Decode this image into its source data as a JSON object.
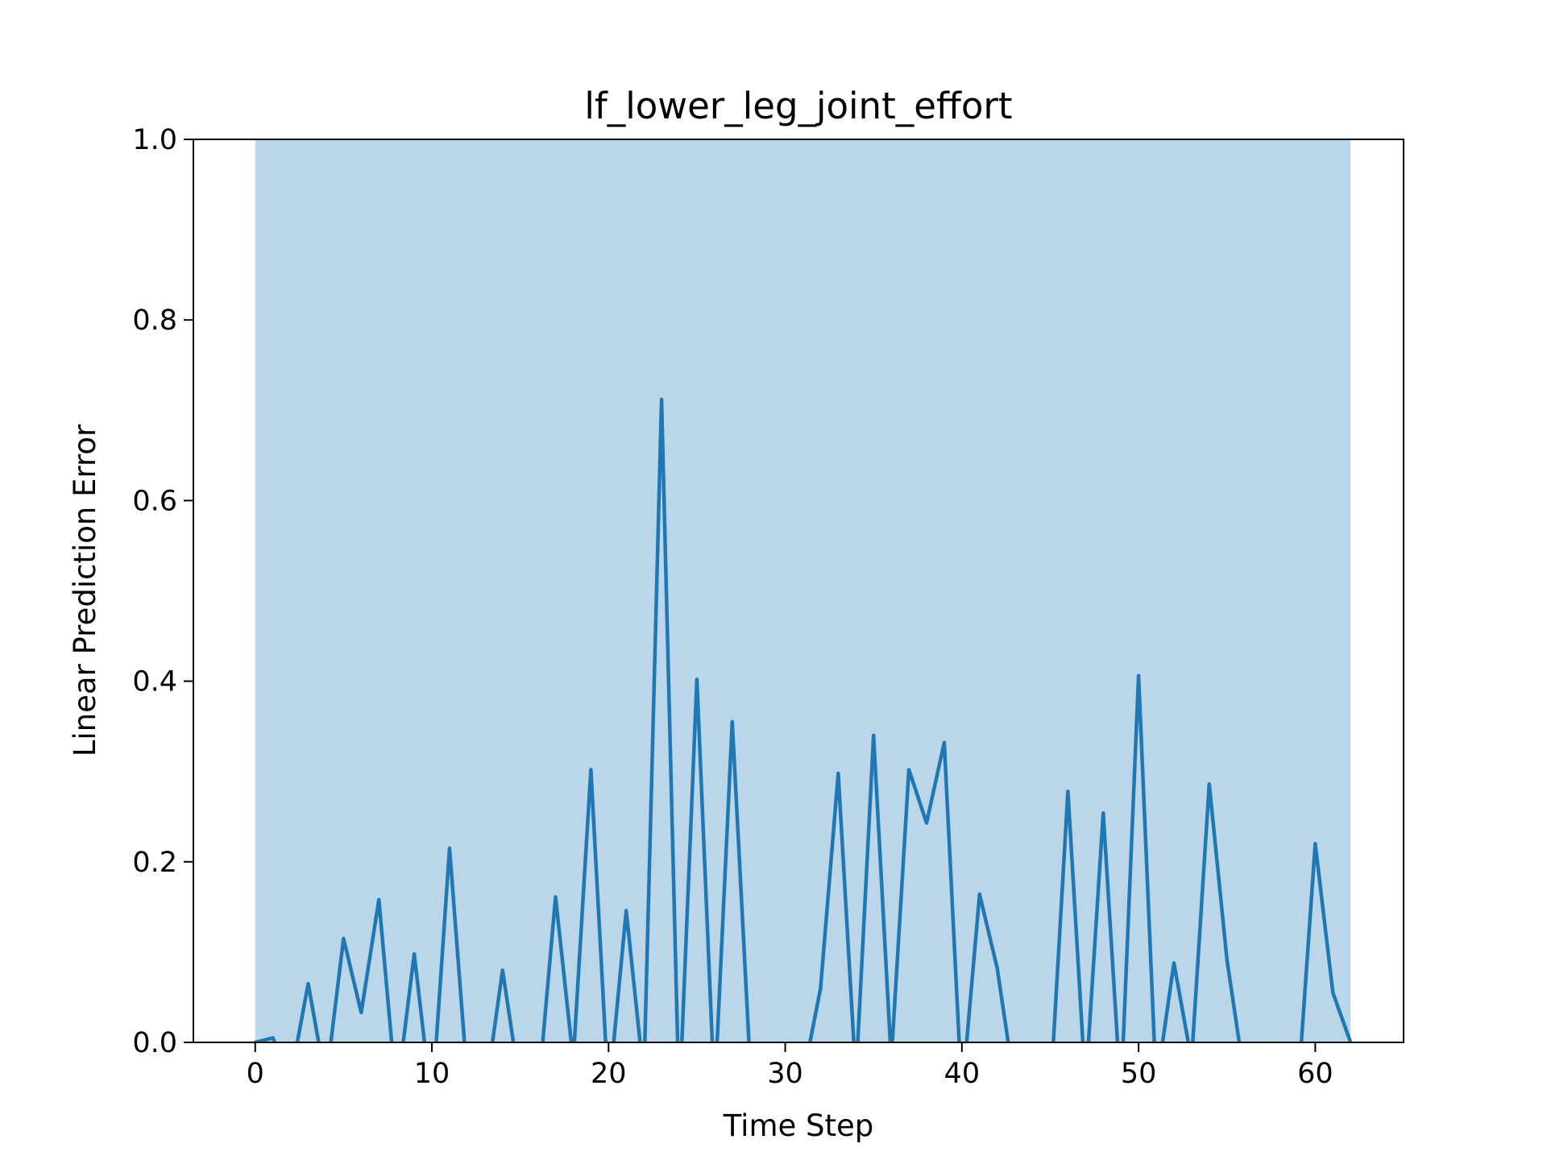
{
  "chart_data": {
    "type": "line",
    "title": "lf_lower_leg_joint_effort",
    "xlabel": "Time Step",
    "ylabel": "Linear Prediction Error",
    "xlim": [
      -3.5,
      65.0
    ],
    "ylim": [
      0.0,
      1.0
    ],
    "xticks": [
      0,
      10,
      20,
      30,
      40,
      50,
      60
    ],
    "yticks": [
      0.0,
      0.2,
      0.4,
      0.6,
      0.8,
      1.0
    ],
    "xtick_labels": [
      "0",
      "10",
      "20",
      "30",
      "40",
      "50",
      "60"
    ],
    "ytick_labels": [
      "0.0",
      "0.2",
      "0.4",
      "0.6",
      "0.8",
      "1.0"
    ],
    "grid": false,
    "line_color": "#1f77b4",
    "shaded_band": {
      "x_start": 0,
      "x_end": 62,
      "color": "#1f77b4",
      "opacity": 0.3
    },
    "series": [
      {
        "x": [
          0,
          1,
          2,
          3,
          4,
          5,
          6,
          7,
          8,
          9,
          10,
          11,
          12,
          13,
          14,
          15,
          16,
          17,
          18,
          19,
          20,
          21,
          22,
          23,
          24,
          25,
          26,
          27,
          28,
          29,
          30,
          31,
          32,
          33,
          34,
          35,
          36,
          37,
          38,
          39,
          40,
          41,
          42,
          43,
          44,
          45,
          46,
          47,
          48,
          49,
          50,
          51,
          52,
          53,
          54,
          55,
          56,
          57,
          58,
          59,
          60,
          61,
          62
        ],
        "values": [
          0.0,
          0.005,
          -0.04,
          0.065,
          -0.045,
          0.115,
          0.033,
          0.158,
          -0.06,
          0.098,
          -0.07,
          0.215,
          -0.04,
          -0.06,
          0.08,
          -0.05,
          -0.06,
          0.161,
          -0.02,
          0.302,
          -0.06,
          0.146,
          -0.04,
          0.712,
          -0.07,
          0.402,
          -0.06,
          0.355,
          -0.02,
          -0.05,
          -0.05,
          -0.04,
          0.06,
          0.298,
          -0.04,
          0.34,
          -0.02,
          0.302,
          0.243,
          0.332,
          -0.06,
          0.164,
          0.082,
          -0.05,
          -0.05,
          -0.06,
          0.278,
          -0.05,
          0.254,
          -0.06,
          0.406,
          -0.05,
          0.088,
          -0.02,
          0.286,
          0.092,
          -0.04,
          -0.05,
          -0.04,
          -0.06,
          0.22,
          0.055,
          0.0
        ]
      }
    ]
  }
}
